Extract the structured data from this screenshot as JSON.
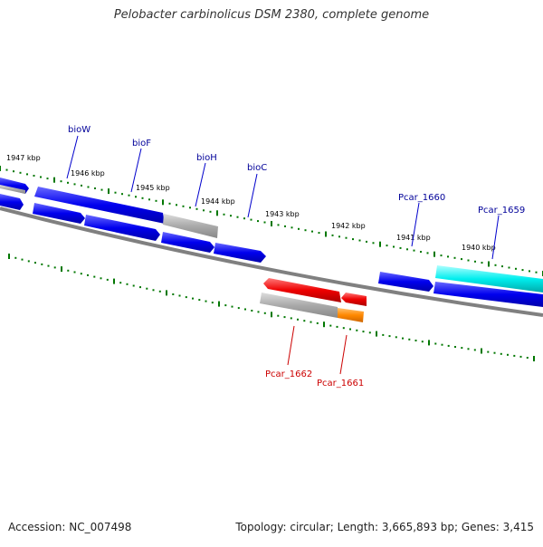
{
  "title": "Pelobacter carbinolicus DSM 2380, complete genome",
  "footer": {
    "accession": "Accession: NC_007498",
    "summary": "Topology: circular; Length: 3,665,893 bp; Genes: 3,415"
  },
  "colors": {
    "forward_gene": "#0000ee",
    "reverse_gene": "#ee0000",
    "highlight_gene": "#00eeee",
    "noncoding": "#aaaaaa",
    "orange_gene": "#ff8800",
    "tick": "#007700",
    "backbone": "#808080",
    "forward_label": "#000099",
    "reverse_label": "#cc0000"
  },
  "scale_labels": [
    "1947 kbp",
    "1946 kbp",
    "1945 kbp",
    "1944 kbp",
    "1943 kbp",
    "1942 kbp",
    "1941 kbp",
    "1940 kbp"
  ],
  "gene_labels": {
    "bioW": "bioW",
    "bioF": "bioF",
    "bioH": "bioH",
    "bioC": "bioC",
    "pcar_1660": "Pcar_1660",
    "pcar_1659": "Pcar_1659",
    "pcar_1662": "Pcar_1662",
    "pcar_1661": "Pcar_1661"
  }
}
